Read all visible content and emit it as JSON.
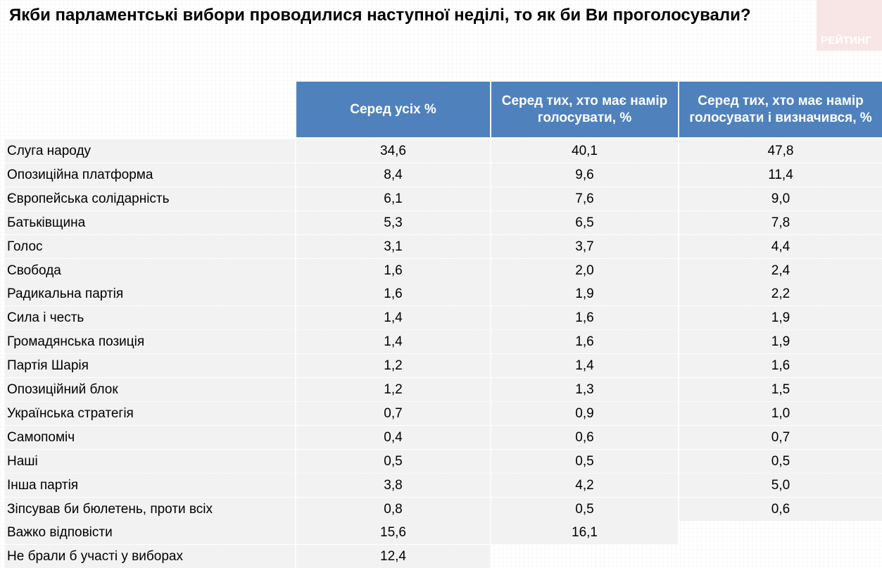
{
  "title": "Якби парламентські вибори проводилися наступної неділі, то як би Ви проголосували?",
  "logo_text": "РЕЙТИНГ",
  "colors": {
    "header_bg": "#4f81bd",
    "row_bg": "#f2f2f2",
    "logo_bg": "#f5dede"
  },
  "chart_data": {
    "type": "table",
    "title": "Якби парламентські вибори проводилися наступної неділі, то як би Ви проголосували?",
    "columns": [
      "Серед усіх %",
      "Серед тих, хто має намір голосувати, %",
      "Серед тих, хто має намір голосувати і визначився, %"
    ],
    "rows": [
      {
        "label": "Слуга народу",
        "values": [
          "34,6",
          "40,1",
          "47,8"
        ]
      },
      {
        "label": "Опозиційна платформа",
        "values": [
          "8,4",
          "9,6",
          "11,4"
        ]
      },
      {
        "label": "Європейська солідарність",
        "values": [
          "6,1",
          "7,6",
          "9,0"
        ]
      },
      {
        "label": "Батьківщина",
        "values": [
          "5,3",
          "6,5",
          "7,8"
        ]
      },
      {
        "label": "Голос",
        "values": [
          "3,1",
          "3,7",
          "4,4"
        ]
      },
      {
        "label": "Свобода",
        "values": [
          "1,6",
          "2,0",
          "2,4"
        ]
      },
      {
        "label": "Радикальна партія",
        "values": [
          "1,6",
          "1,9",
          "2,2"
        ]
      },
      {
        "label": "Сила і честь",
        "values": [
          "1,4",
          "1,6",
          "1,9"
        ]
      },
      {
        "label": "Громадянська позиція",
        "values": [
          "1,4",
          "1,6",
          "1,9"
        ]
      },
      {
        "label": "Партія Шарія",
        "values": [
          "1,2",
          "1,4",
          "1,6"
        ]
      },
      {
        "label": "Опозиційний блок",
        "values": [
          "1,2",
          "1,3",
          "1,5"
        ]
      },
      {
        "label": "Українська стратегія",
        "values": [
          "0,7",
          "0,9",
          "1,0"
        ]
      },
      {
        "label": "Самопоміч",
        "values": [
          "0,4",
          "0,6",
          "0,7"
        ]
      },
      {
        "label": "Наші",
        "values": [
          "0,5",
          "0,5",
          "0,5"
        ]
      },
      {
        "label": "Інша партія",
        "values": [
          "3,8",
          "4,2",
          "5,0"
        ]
      },
      {
        "label": "Зіпсував би бюлетень, проти всіх",
        "values": [
          "0,8",
          "0,5",
          "0,6"
        ]
      },
      {
        "label": "Важко відповісти",
        "values": [
          "15,6",
          "16,1"
        ]
      },
      {
        "label": "Не брали б участі у виборах",
        "values": [
          "12,4"
        ]
      }
    ]
  }
}
